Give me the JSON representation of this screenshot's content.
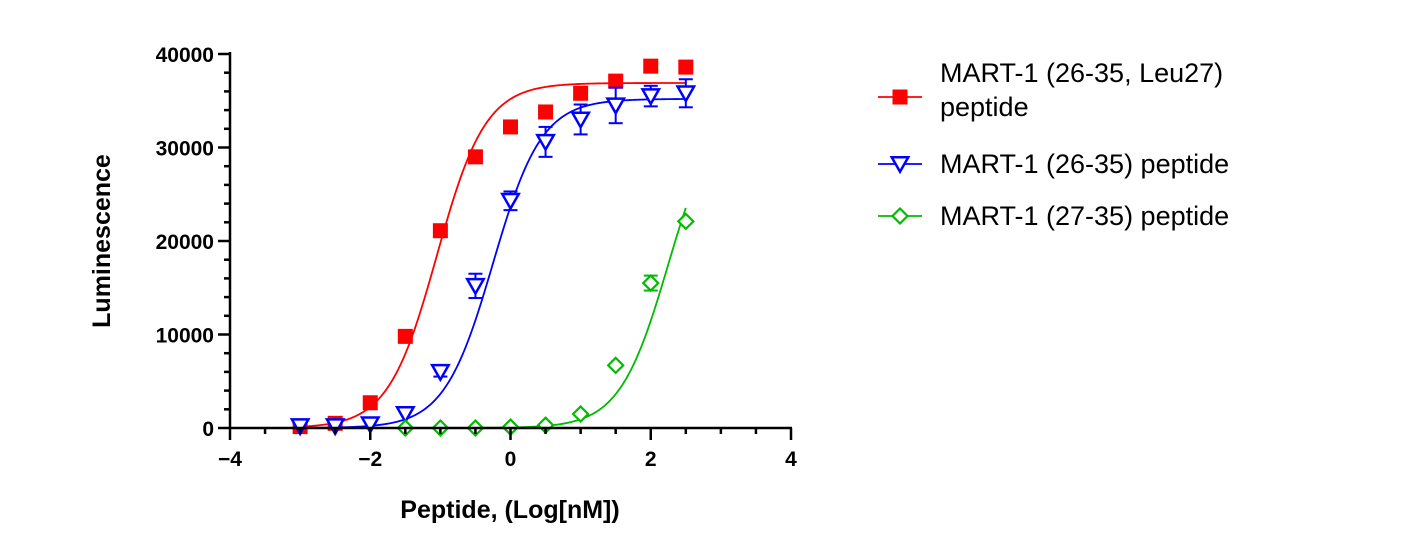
{
  "chart_data": {
    "type": "scatter",
    "xlabel": "Peptide, (Log[nM])",
    "ylabel": "Luminescence",
    "xlim": [
      -4,
      4
    ],
    "ylim": [
      0,
      40000
    ],
    "xticks": [
      -4,
      -2,
      0,
      2,
      4
    ],
    "yticks": [
      0,
      10000,
      20000,
      30000,
      40000
    ],
    "legend_position": "right",
    "series": [
      {
        "name": "MART-1 (26-35, Leu27) peptide",
        "name_lines": [
          "MART-1 (26-35, Leu27)",
          "peptide"
        ],
        "color": "#ff0000",
        "marker": "square",
        "x": [
          -3,
          -2.5,
          -2,
          -1.5,
          -1,
          -0.5,
          0,
          0.5,
          1,
          1.5,
          2,
          2.5
        ],
        "y": [
          150,
          500,
          2700,
          9800,
          21100,
          29000,
          32200,
          33800,
          35800,
          37100,
          38700,
          38600
        ],
        "fit": {
          "bottom": 0,
          "top": 36900,
          "logEC50": -1.05,
          "hill": 1.25
        }
      },
      {
        "name": "MART-1 (26-35) peptide",
        "name_lines": [
          "MART-1 (26-35) peptide"
        ],
        "color": "#0000ff",
        "marker": "triangle-down",
        "x": [
          -3,
          -2.5,
          -2,
          -1.5,
          -1,
          -0.5,
          0,
          0.5,
          1,
          1.5,
          2,
          2.5
        ],
        "y": [
          200,
          200,
          400,
          1500,
          6000,
          15200,
          24300,
          30600,
          33000,
          34500,
          35500,
          35800
        ],
        "err": [
          0,
          0,
          0,
          0,
          500,
          1300,
          1000,
          1600,
          1600,
          1900,
          1100,
          1500
        ],
        "fit": {
          "bottom": 0,
          "top": 35200,
          "logEC50": -0.25,
          "hill": 1.25
        }
      },
      {
        "name": "MART-1 (27-35) peptide",
        "name_lines": [
          "MART-1 (27-35) peptide"
        ],
        "color": "#00bb00",
        "marker": "diamond-open",
        "x": [
          -1.5,
          -1,
          -0.5,
          0,
          0.5,
          1,
          1.5,
          2,
          2.5
        ],
        "y": [
          0,
          0,
          0,
          100,
          300,
          1500,
          6700,
          15500,
          22100
        ],
        "err": [
          0,
          0,
          0,
          0,
          0,
          0,
          0,
          800,
          0
        ],
        "fit": {
          "bottom": 0,
          "top": 35000,
          "logEC50": 2.25,
          "hill": 1.25,
          "xmin": -1.5,
          "xmax": 2.5
        }
      }
    ]
  }
}
